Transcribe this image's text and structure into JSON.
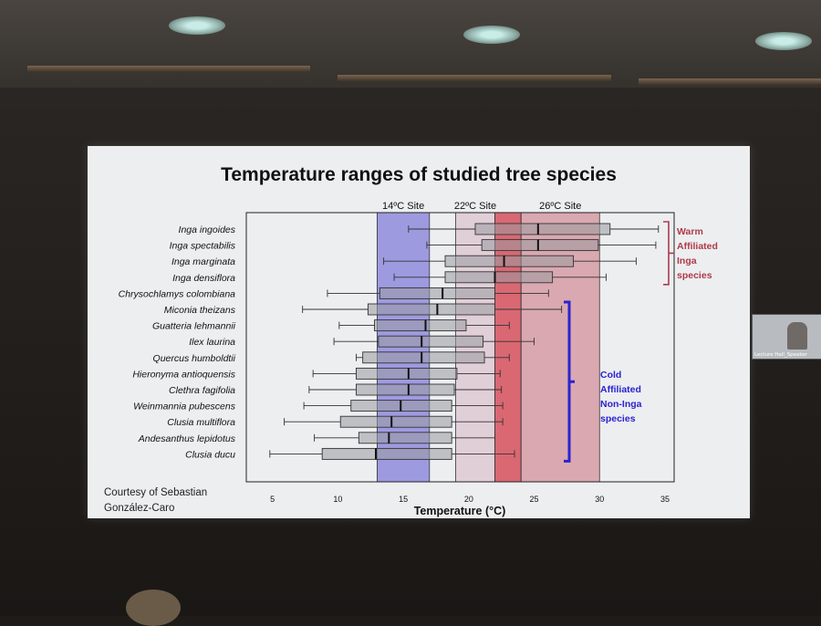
{
  "window": {
    "pip_label": "Lecture Hall_Speaker"
  },
  "chart_data": {
    "type": "boxplot",
    "title": "Temperature ranges of studied tree species",
    "xlabel": "Temperature (°C)",
    "ylabel": "",
    "xlim": [
      3,
      35.7
    ],
    "x_ticks": [
      5,
      10,
      15,
      20,
      25,
      30,
      35
    ],
    "grid": false,
    "site_bands": [
      {
        "label": "14ºC Site",
        "range": [
          13.0,
          17.0
        ],
        "color": "#6a63d6",
        "opacity": 0.6
      },
      {
        "label": "22ºC Site",
        "range": [
          19.0,
          22.0
        ],
        "color": "#d7b6c2",
        "opacity": 0.55
      },
      {
        "label": "",
        "range": [
          22.0,
          24.0
        ],
        "color": "#d3434f",
        "opacity": 0.78
      },
      {
        "label": "26ºC Site",
        "range": [
          24.0,
          30.0
        ],
        "color": "#cc6f7c",
        "opacity": 0.55
      }
    ],
    "series": [
      {
        "name": "Inga ingoides",
        "whisker_low": 15.4,
        "q1": 20.5,
        "median": 25.3,
        "q3": 30.8,
        "whisker_high": 34.5
      },
      {
        "name": "Inga spectabilis",
        "whisker_low": 16.8,
        "q1": 21.0,
        "median": 25.3,
        "q3": 29.9,
        "whisker_high": 34.3
      },
      {
        "name": "Inga marginata",
        "whisker_low": 13.5,
        "q1": 18.2,
        "median": 22.7,
        "q3": 28.0,
        "whisker_high": 32.8
      },
      {
        "name": "Inga densiflora",
        "whisker_low": 14.3,
        "q1": 18.2,
        "median": 22.0,
        "q3": 26.4,
        "whisker_high": 30.5
      },
      {
        "name": "Chrysochlamys colombiana",
        "whisker_low": 9.2,
        "q1": 13.2,
        "median": 18.0,
        "q3": 22.0,
        "whisker_high": 26.1
      },
      {
        "name": "Miconia theizans",
        "whisker_low": 7.3,
        "q1": 12.3,
        "median": 17.6,
        "q3": 22.0,
        "whisker_high": 27.1
      },
      {
        "name": "Guatteria lehmannii",
        "whisker_low": 10.1,
        "q1": 12.8,
        "median": 16.7,
        "q3": 19.8,
        "whisker_high": 23.1
      },
      {
        "name": "Ilex laurina",
        "whisker_low": 9.7,
        "q1": 13.1,
        "median": 16.4,
        "q3": 21.1,
        "whisker_high": 25.0
      },
      {
        "name": "Quercus humboldtii",
        "whisker_low": 11.4,
        "q1": 11.9,
        "median": 16.4,
        "q3": 21.2,
        "whisker_high": 23.1
      },
      {
        "name": "Hieronyma antioquensis",
        "whisker_low": 8.1,
        "q1": 11.4,
        "median": 15.4,
        "q3": 19.1,
        "whisker_high": 22.4
      },
      {
        "name": "Clethra fagifolia",
        "whisker_low": 7.8,
        "q1": 11.4,
        "median": 15.4,
        "q3": 18.9,
        "whisker_high": 22.5
      },
      {
        "name": "Weinmannia pubescens",
        "whisker_low": 7.4,
        "q1": 11.0,
        "median": 14.8,
        "q3": 18.7,
        "whisker_high": 22.6
      },
      {
        "name": "Clusia multiflora",
        "whisker_low": 5.9,
        "q1": 10.2,
        "median": 14.1,
        "q3": 18.7,
        "whisker_high": 22.6
      },
      {
        "name": "Andesanthus lepidotus",
        "whisker_low": 8.2,
        "q1": 11.6,
        "median": 13.9,
        "q3": 18.7,
        "whisker_high": 22.0
      },
      {
        "name": "Clusia ducu",
        "whisker_low": 4.8,
        "q1": 8.8,
        "median": 12.9,
        "q3": 18.7,
        "whisker_high": 23.5
      }
    ],
    "groups": [
      {
        "label_lines": [
          "Warm",
          "Affiliated",
          "Inga",
          "species"
        ],
        "color": "#b03a4a",
        "rows": [
          0,
          3
        ]
      },
      {
        "label_lines": [
          "Cold",
          "Affiliated",
          "Non-Inga",
          "species"
        ],
        "color": "#2b23cf",
        "rows": [
          5,
          14
        ]
      }
    ],
    "annotation_lines": [
      "Courtesy of Sebastian",
      "González-Caro"
    ]
  }
}
